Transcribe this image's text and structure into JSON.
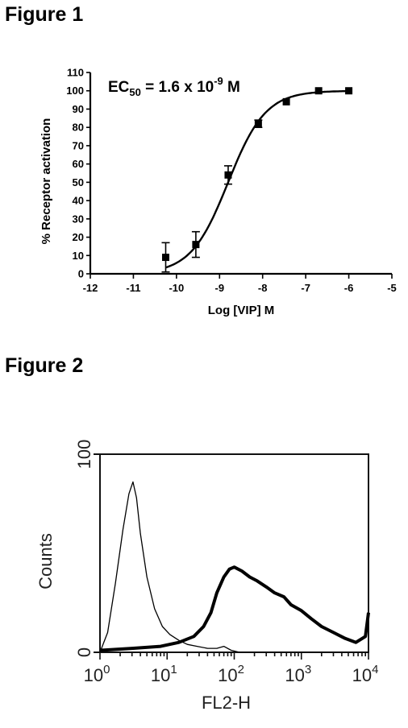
{
  "figure1": {
    "title": "Figure 1",
    "chart_data": {
      "type": "scatter",
      "xlabel": "Log [VIP] M",
      "ylabel": "% Receptor activation",
      "xlim": [
        -12,
        -5
      ],
      "ylim": [
        0,
        110
      ],
      "x_ticks": [
        -12,
        -11,
        -10,
        -9,
        -8,
        -7,
        -6,
        -5
      ],
      "y_ticks": [
        0,
        10,
        20,
        30,
        40,
        50,
        60,
        70,
        80,
        90,
        100,
        110
      ],
      "points": [
        {
          "x": -10.25,
          "y": 9,
          "err": 8
        },
        {
          "x": -9.55,
          "y": 16,
          "err": 7
        },
        {
          "x": -8.8,
          "y": 54,
          "err": 5
        },
        {
          "x": -8.1,
          "y": 82,
          "err": 2
        },
        {
          "x": -7.45,
          "y": 94,
          "err": 1
        },
        {
          "x": -6.7,
          "y": 100,
          "err": 1
        },
        {
          "x": -6.0,
          "y": 100,
          "err": 1
        }
      ],
      "fit": {
        "bottom": 0,
        "top": 100,
        "log_ec50": -8.8
      },
      "annotation": {
        "prefix": "EC",
        "sub": "50",
        "mid": " = 1.6 x 10",
        "sup": "-9",
        "suffix": " M"
      }
    }
  },
  "figure2": {
    "title": "Figure 2",
    "chart_data": {
      "type": "line",
      "xlabel": "FL2-H",
      "ylabel": "Counts",
      "x_scale": "log",
      "xlim": [
        1,
        10000
      ],
      "ylim": [
        0,
        100
      ],
      "y_ticks": [
        0,
        100
      ],
      "x_ticks": [
        {
          "base": "10",
          "exp": "0"
        },
        {
          "base": "10",
          "exp": "1"
        },
        {
          "base": "10",
          "exp": "2"
        },
        {
          "base": "10",
          "exp": "3"
        },
        {
          "base": "10",
          "exp": "4"
        }
      ],
      "series": [
        {
          "style": "thin",
          "x": [
            1,
            1.3,
            1.7,
            2.2,
            2.7,
            3.1,
            3.5,
            4,
            5,
            6.5,
            8.5,
            11,
            15,
            20,
            28,
            40,
            55,
            70,
            90,
            120,
            200,
            400,
            1000,
            3000,
            10000
          ],
          "y": [
            0,
            10,
            35,
            62,
            80,
            86,
            78,
            60,
            38,
            22,
            13,
            9,
            6,
            4,
            3,
            2,
            2,
            3,
            1,
            0,
            0,
            0,
            0,
            0,
            0
          ]
        },
        {
          "style": "thick",
          "x": [
            1,
            3,
            8,
            15,
            25,
            35,
            45,
            55,
            70,
            85,
            100,
            130,
            170,
            220,
            300,
            400,
            550,
            700,
            1000,
            1400,
            2000,
            3000,
            4500,
            6500,
            9000,
            10000
          ],
          "y": [
            1,
            2,
            3,
            5,
            8,
            13,
            20,
            30,
            38,
            42,
            43,
            41,
            38,
            36,
            33,
            30,
            28,
            24,
            21,
            17,
            13,
            10,
            7,
            5,
            8,
            20
          ]
        }
      ]
    }
  }
}
